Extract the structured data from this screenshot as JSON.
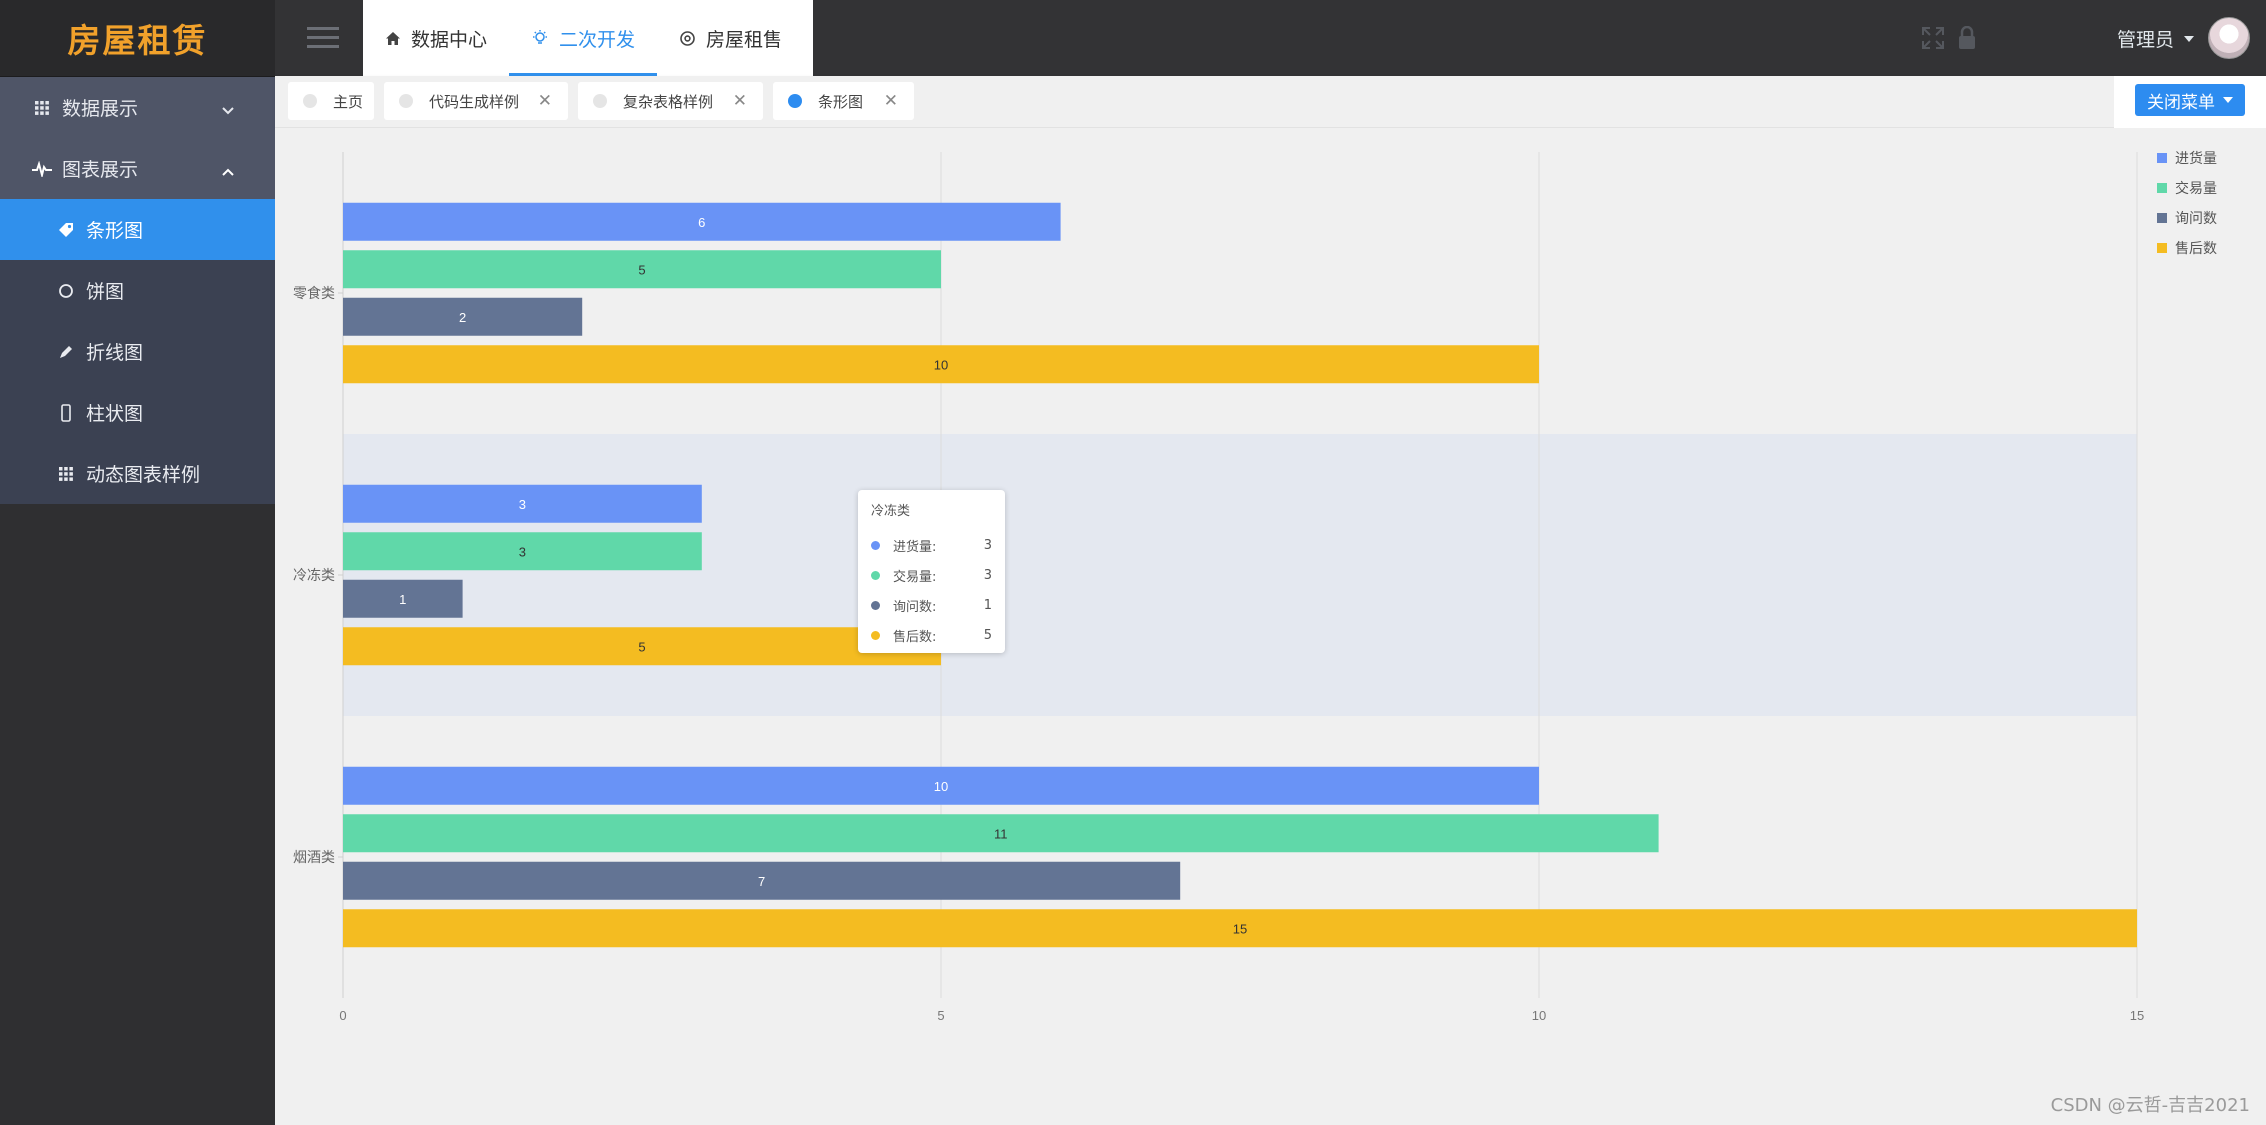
{
  "app": {
    "logo": "房屋租赁"
  },
  "sidebar": {
    "groups": [
      {
        "label": "数据展示",
        "icon": "grid-icon",
        "expanded": false
      },
      {
        "label": "图表展示",
        "icon": "pulse-icon",
        "expanded": true
      }
    ],
    "items": [
      {
        "label": "条形图",
        "icon": "tag-icon",
        "active": true
      },
      {
        "label": "饼图",
        "icon": "circle-icon"
      },
      {
        "label": "折线图",
        "icon": "pen-icon"
      },
      {
        "label": "柱状图",
        "icon": "phone-icon"
      },
      {
        "label": "动态图表样例",
        "icon": "grid-icon"
      }
    ]
  },
  "header": {
    "tabs": [
      {
        "label": "数据中心",
        "icon": "home-icon"
      },
      {
        "label": "二次开发",
        "icon": "bulb-icon",
        "active": true
      },
      {
        "label": "房屋租售",
        "icon": "settings-icon"
      }
    ],
    "user": "管理员"
  },
  "tabbar": {
    "tabs": [
      {
        "label": "主页"
      },
      {
        "label": "代码生成样例",
        "closable": true
      },
      {
        "label": "复杂表格样例",
        "closable": true
      },
      {
        "label": "条形图",
        "closable": true,
        "active": true
      }
    ],
    "close_menu": "关闭菜单"
  },
  "chart_data": {
    "type": "bar",
    "orientation": "horizontal",
    "categories": [
      "零食类",
      "冷冻类",
      "烟酒类"
    ],
    "series": [
      {
        "name": "进货量",
        "values": [
          6,
          3,
          10
        ],
        "color": "#6993f6"
      },
      {
        "name": "交易量",
        "values": [
          5,
          3,
          11
        ],
        "color": "#60d8a9"
      },
      {
        "name": "询问数",
        "values": [
          2,
          1,
          7
        ],
        "color": "#637494"
      },
      {
        "name": "售后数",
        "values": [
          10,
          5,
          15
        ],
        "color": "#f4bc21"
      }
    ],
    "xlim": [
      0,
      15
    ],
    "xticks": [
      0,
      5,
      10,
      15
    ],
    "grid": true,
    "legend": "top-right",
    "highlighted_category": "冷冻类",
    "tooltip": {
      "title": "冷冻类",
      "rows": [
        {
          "name": "进货量:",
          "value": 3,
          "color": "#6993f6"
        },
        {
          "name": "交易量:",
          "value": 3,
          "color": "#60d8a9"
        },
        {
          "name": "询问数:",
          "value": 1,
          "color": "#637494"
        },
        {
          "name": "售后数:",
          "value": 5,
          "color": "#f4bc21"
        }
      ]
    }
  },
  "watermark": "CSDN @云哲-吉吉2021"
}
